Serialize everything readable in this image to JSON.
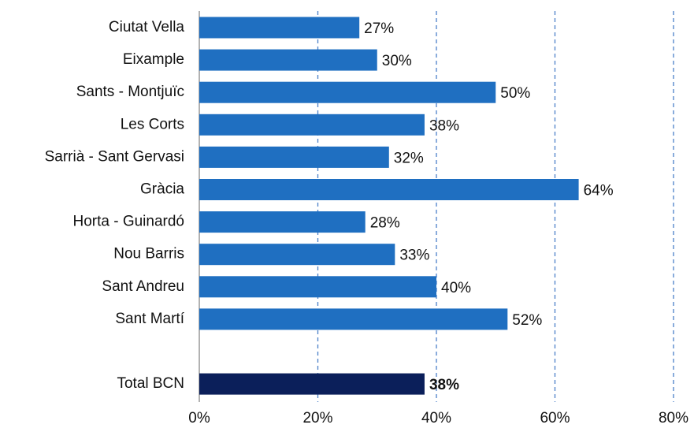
{
  "chart_data": {
    "type": "hbar",
    "categories": [
      "Ciutat Vella",
      "Eixample",
      "Sants - Montjuïc",
      "Les Corts",
      "Sarrià - Sant Gervasi",
      "Gràcia",
      "Horta - Guinardó",
      "Nou Barris",
      "Sant Andreu",
      "Sant Martí",
      null,
      "Total BCN"
    ],
    "values": [
      27,
      30,
      50,
      38,
      32,
      64,
      28,
      33,
      40,
      52,
      null,
      38
    ],
    "value_labels": [
      "27%",
      "30%",
      "50%",
      "38%",
      "32%",
      "64%",
      "28%",
      "33%",
      "40%",
      "52%",
      null,
      "38%"
    ],
    "colors": [
      "#1f6fc1",
      "#1f6fc1",
      "#1f6fc1",
      "#1f6fc1",
      "#1f6fc1",
      "#1f6fc1",
      "#1f6fc1",
      "#1f6fc1",
      "#1f6fc1",
      "#1f6fc1",
      null,
      "#0b1f5a"
    ],
    "xlim": [
      0,
      80
    ],
    "xticks": [
      {
        "value": 0,
        "label": "0%"
      },
      {
        "value": 20,
        "label": "20%"
      },
      {
        "value": 40,
        "label": "40%"
      },
      {
        "value": 60,
        "label": "60%"
      },
      {
        "value": 80,
        "label": "80%"
      }
    ],
    "grid": true
  }
}
